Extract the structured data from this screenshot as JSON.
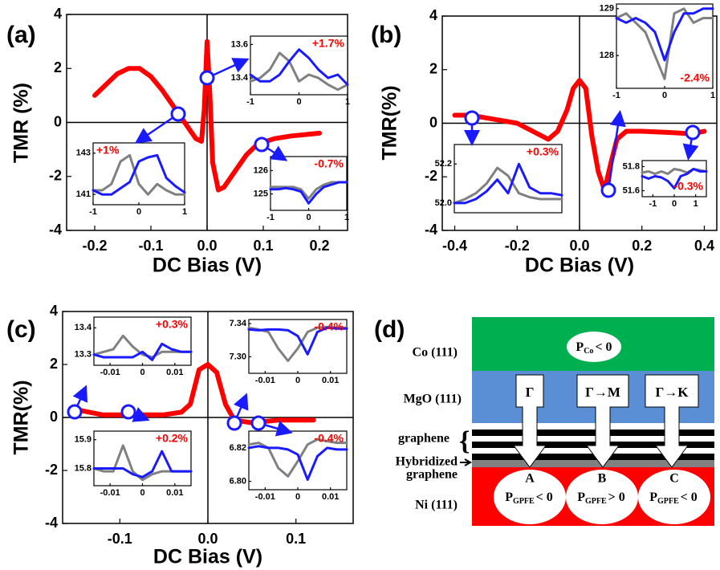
{
  "chart_data": [
    {
      "type": "line",
      "panel_label": "(a)",
      "x_label": "DC Bias (V)",
      "y_label": "TMR (%)",
      "xlim": [
        -0.25,
        0.25
      ],
      "xticks": [
        -0.2,
        -0.1,
        {
          "value": 0,
          "label": "0.0"
        },
        0.1,
        0.2
      ],
      "ylim": [
        -4,
        4
      ],
      "yticks": [
        -4,
        -2,
        0,
        2,
        4
      ],
      "x": [
        -0.2,
        -0.18,
        -0.16,
        -0.14,
        -0.12,
        -0.1,
        -0.08,
        -0.06,
        -0.04,
        -0.02,
        -0.01,
        -0.005,
        0,
        0.005,
        0.01,
        0.02,
        0.03,
        0.05,
        0.07,
        0.09,
        0.12,
        0.15,
        0.2
      ],
      "series": [
        {
          "color": "#ff0000",
          "values": [
            1.0,
            1.4,
            1.8,
            2.0,
            2.0,
            1.7,
            1.2,
            0.6,
            0.0,
            -0.6,
            -0.7,
            0.5,
            3.0,
            1.0,
            -1.5,
            -2.5,
            -2.4,
            -1.8,
            -1.2,
            -0.8,
            -0.6,
            -0.5,
            -0.4
          ]
        }
      ],
      "insets": [
        {
          "type": "line",
          "annotation": "+1.7%",
          "annotation_color": "#ff0000",
          "xlim": [
            -1,
            1
          ],
          "xticks": [
            -1,
            0,
            1
          ],
          "ylim": [
            13.3,
            13.65
          ],
          "yticks": [
            13.6,
            13.4
          ],
          "x": [
            -1,
            -0.8,
            -0.6,
            -0.4,
            -0.2,
            0,
            0.2,
            0.4,
            0.6,
            0.8,
            1
          ],
          "series": [
            {
              "color": "#808080",
              "values": [
                13.38,
                13.4,
                13.45,
                13.55,
                13.5,
                13.38,
                13.42,
                13.4,
                13.36,
                13.33,
                13.36
              ]
            },
            {
              "color": "#1a1aff",
              "values": [
                13.42,
                13.38,
                13.38,
                13.42,
                13.5,
                13.57,
                13.52,
                13.45,
                13.4,
                13.42,
                13.36
              ]
            }
          ]
        },
        {
          "type": "line",
          "annotation": "+1%",
          "annotation_color": "#ff0000",
          "xlim": [
            -1,
            1
          ],
          "xticks": [
            -1,
            0,
            1
          ],
          "ylim": [
            140.5,
            143.5
          ],
          "yticks": [
            143,
            141
          ],
          "x": [
            -1,
            -0.8,
            -0.6,
            -0.4,
            -0.2,
            0,
            0.2,
            0.4,
            0.6,
            0.8,
            1
          ],
          "series": [
            {
              "color": "#808080",
              "values": [
                141.2,
                141.2,
                141.5,
                142.6,
                142.9,
                141.5,
                141.0,
                141.5,
                141.2,
                141.0,
                141.0
              ]
            },
            {
              "color": "#1a1aff",
              "values": [
                141.2,
                141.0,
                141.0,
                141.3,
                141.6,
                142.6,
                142.8,
                142.9,
                141.8,
                141.4,
                141.1
              ]
            }
          ]
        },
        {
          "type": "line",
          "annotation": "-0.7%",
          "annotation_color": "#ff0000",
          "xlim": [
            -1,
            1
          ],
          "xticks": [
            -1,
            0,
            1
          ],
          "ylim": [
            124.3,
            126.6
          ],
          "yticks": [
            126,
            125
          ],
          "x": [
            -1,
            -0.8,
            -0.6,
            -0.4,
            -0.2,
            0,
            0.2,
            0.4,
            0.6,
            0.8,
            1
          ],
          "series": [
            {
              "color": "#808080",
              "values": [
                125.3,
                125.3,
                125.3,
                125.3,
                125.2,
                124.8,
                125.2,
                125.4,
                125.5,
                125.5,
                125.5
              ]
            },
            {
              "color": "#1a1aff",
              "values": [
                125.2,
                125.2,
                125.25,
                125.2,
                125.1,
                124.6,
                125.0,
                125.3,
                125.4,
                125.5,
                125.5
              ]
            }
          ]
        }
      ]
    },
    {
      "type": "line",
      "panel_label": "(b)",
      "x_label": "DC Bias (V)",
      "y_label": "TMR(%)",
      "xlim": [
        -0.44,
        0.44
      ],
      "xticks": [
        -0.4,
        -0.2,
        {
          "value": 0,
          "label": "0.0"
        },
        0.2,
        0.4
      ],
      "ylim": [
        -4,
        4
      ],
      "yticks": [
        -4,
        -2,
        0,
        2,
        4
      ],
      "x": [
        -0.4,
        -0.35,
        -0.3,
        -0.2,
        -0.15,
        -0.1,
        -0.07,
        -0.04,
        -0.02,
        0,
        0.02,
        0.04,
        0.06,
        0.08,
        0.1,
        0.12,
        0.15,
        0.2,
        0.3,
        0.36,
        0.4
      ],
      "series": [
        {
          "color": "#ff0000",
          "values": [
            0.3,
            0.3,
            0.2,
            0.0,
            -0.3,
            -0.6,
            -0.3,
            0.5,
            1.3,
            1.6,
            1.3,
            -0.5,
            -1.8,
            -2.5,
            -1.5,
            -0.6,
            -0.3,
            -0.3,
            -0.35,
            -0.4,
            -0.3
          ]
        }
      ],
      "insets": [
        {
          "type": "line",
          "annotation": "-2.4%",
          "annotation_color": "#ff0000",
          "xlim": [
            -1,
            1
          ],
          "xticks": [
            -1,
            0,
            1
          ],
          "ylim": [
            127.3,
            129.1
          ],
          "yticks": [
            129,
            128
          ],
          "x": [
            -1,
            -0.8,
            -0.6,
            -0.4,
            -0.2,
            0,
            0.2,
            0.4,
            0.6,
            0.8,
            1
          ],
          "series": [
            {
              "color": "#808080",
              "values": [
                128.8,
                128.9,
                128.7,
                128.5,
                128.0,
                127.5,
                128.9,
                129.0,
                128.7,
                128.8,
                128.8
              ]
            },
            {
              "color": "#1a1aff",
              "values": [
                128.8,
                128.7,
                128.8,
                128.7,
                128.5,
                127.9,
                128.5,
                128.9,
                128.9,
                129.0,
                129.0
              ]
            }
          ]
        },
        {
          "type": "line",
          "annotation": "+0.3%",
          "annotation_color": "#ff0000",
          "xlim": [
            -1,
            1
          ],
          "ylim": [
            51.95,
            52.3
          ],
          "yticks": [
            52.2,
            {
              "value": 52,
              "label": "52.0"
            }
          ],
          "x": [
            -1,
            -0.8,
            -0.6,
            -0.4,
            -0.2,
            0,
            0.2,
            0.4,
            0.6,
            0.8,
            1
          ],
          "series": [
            {
              "color": "#808080",
              "values": [
                52.0,
                52.02,
                52.05,
                52.1,
                52.18,
                52.14,
                52.05,
                52.03,
                52.02,
                52.02,
                52.02
              ]
            },
            {
              "color": "#1a1aff",
              "values": [
                52.0,
                52.0,
                52.02,
                52.06,
                52.12,
                52.05,
                52.2,
                52.08,
                52.05,
                52.05,
                52.04
              ]
            }
          ]
        },
        {
          "type": "line",
          "annotation": "-0.3%",
          "annotation_color": "#ff0000",
          "xlim": [
            -1.5,
            1.5
          ],
          "xticks": [
            -1,
            0,
            1
          ],
          "ylim": [
            51.55,
            51.85
          ],
          "yticks": [
            51.8,
            51.6
          ],
          "x": [
            -1.5,
            -1.2,
            -0.9,
            -0.6,
            -0.3,
            0,
            0.3,
            0.6,
            0.9,
            1.2,
            1.5
          ],
          "series": [
            {
              "color": "#808080",
              "values": [
                51.75,
                51.76,
                51.74,
                51.76,
                51.74,
                51.78,
                51.77,
                51.75,
                51.78,
                51.77,
                51.76
              ]
            },
            {
              "color": "#1a1aff",
              "values": [
                51.72,
                51.7,
                51.72,
                51.71,
                51.68,
                51.62,
                51.72,
                51.74,
                51.78,
                51.76,
                51.76
              ]
            }
          ]
        }
      ]
    },
    {
      "type": "line",
      "panel_label": "(c)",
      "x_label": "DC Bias (V)",
      "y_label": "TMR(%)",
      "xlim": [
        -0.165,
        0.165
      ],
      "xticks": [
        -0.1,
        {
          "value": 0,
          "label": "0.0"
        },
        0.1
      ],
      "ylim": [
        -4,
        4
      ],
      "yticks": [
        -4,
        -2,
        0,
        2,
        4
      ],
      "x": [
        -0.15,
        -0.12,
        -0.08,
        -0.05,
        -0.03,
        -0.02,
        -0.01,
        0,
        0.01,
        0.02,
        0.03,
        0.05,
        0.08,
        0.12
      ],
      "series": [
        {
          "color": "#ff0000",
          "values": [
            0.3,
            0.1,
            0.1,
            0.1,
            0.2,
            0.5,
            1.8,
            2.0,
            1.7,
            0.5,
            -0.1,
            -0.2,
            -0.1,
            -0.1
          ]
        }
      ],
      "insets": [
        {
          "type": "line",
          "annotation": "+0.3%",
          "annotation_color": "#ff0000",
          "xlim": [
            -0.015,
            0.015
          ],
          "xticks": [
            -0.01,
            0,
            0.01
          ],
          "ylim": [
            13.26,
            13.44
          ],
          "yticks": [
            13.4,
            13.3
          ],
          "x": [
            -0.015,
            -0.012,
            -0.009,
            -0.006,
            -0.003,
            0,
            0.003,
            0.006,
            0.009,
            0.012,
            0.015
          ],
          "series": [
            {
              "color": "#808080",
              "values": [
                13.3,
                13.31,
                13.32,
                13.37,
                13.33,
                13.3,
                13.29,
                13.31,
                13.31,
                13.31,
                13.31
              ]
            },
            {
              "color": "#1a1aff",
              "values": [
                13.3,
                13.29,
                13.29,
                13.29,
                13.29,
                13.31,
                13.28,
                13.34,
                13.32,
                13.31,
                13.31
              ]
            }
          ]
        },
        {
          "type": "line",
          "annotation": "+0.2%",
          "annotation_color": "#ff0000",
          "xlim": [
            -0.015,
            0.015
          ],
          "xticks": [
            -0.01,
            0,
            0.01
          ],
          "ylim": [
            15.74,
            15.93
          ],
          "yticks": [
            15.9,
            15.8
          ],
          "x": [
            -0.015,
            -0.012,
            -0.009,
            -0.006,
            -0.003,
            0,
            0.003,
            0.006,
            0.009,
            0.012,
            0.015
          ],
          "series": [
            {
              "color": "#808080",
              "values": [
                15.8,
                15.79,
                15.79,
                15.88,
                15.79,
                15.76,
                15.78,
                15.79,
                15.79,
                15.79,
                15.79
              ]
            },
            {
              "color": "#1a1aff",
              "values": [
                15.8,
                15.8,
                15.8,
                15.8,
                15.78,
                15.77,
                15.79,
                15.86,
                15.79,
                15.79,
                15.79
              ]
            }
          ]
        },
        {
          "type": "line",
          "annotation": "-0.4%",
          "annotation_color": "#ff0000",
          "xlim": [
            -0.015,
            0.015
          ],
          "xticks": [
            -0.01,
            0,
            0.01
          ],
          "ylim": [
            7.28,
            7.345
          ],
          "yticks": [
            7.34,
            {
              "value": 7.3,
              "label": "7.30"
            }
          ],
          "x": [
            -0.015,
            -0.012,
            -0.009,
            -0.006,
            -0.003,
            0,
            0.003,
            0.006,
            0.009,
            0.012,
            0.015
          ],
          "series": [
            {
              "color": "#808080",
              "values": [
                7.335,
                7.333,
                7.33,
                7.31,
                7.295,
                7.31,
                7.33,
                7.335,
                7.336,
                7.335,
                7.335
              ]
            },
            {
              "color": "#1a1aff",
              "values": [
                7.333,
                7.332,
                7.333,
                7.333,
                7.332,
                7.325,
                7.303,
                7.33,
                7.335,
                7.334,
                7.334
              ]
            }
          ]
        },
        {
          "type": "line",
          "annotation": "-0.4%",
          "annotation_color": "#ff0000",
          "xlim": [
            -0.015,
            0.015
          ],
          "xticks": [
            -0.01,
            0,
            0.01
          ],
          "ylim": [
            6.795,
            6.83
          ],
          "yticks": [
            6.82,
            {
              "value": 6.8,
              "label": "6.80"
            }
          ],
          "x": [
            -0.015,
            -0.012,
            -0.009,
            -0.006,
            -0.003,
            0,
            0.003,
            0.006,
            0.009,
            0.012,
            0.015
          ],
          "series": [
            {
              "color": "#808080",
              "values": [
                6.822,
                6.823,
                6.82,
                6.808,
                6.803,
                6.812,
                6.822,
                6.825,
                6.824,
                6.823,
                6.823
              ]
            },
            {
              "color": "#1a1aff",
              "values": [
                6.82,
                6.821,
                6.82,
                6.82,
                6.819,
                6.816,
                6.801,
                6.815,
                6.82,
                6.819,
                6.819
              ]
            }
          ]
        }
      ]
    }
  ],
  "diagram": {
    "label": "(d)",
    "layer_labels": [
      "Co (111)",
      "MgO (111)",
      "graphene",
      "Ni (111)"
    ],
    "hybrid_label": [
      "Hybridized",
      "graphene"
    ],
    "top_polarization": {
      "symbol": "P",
      "subscript": "Co",
      "relation": "< 0"
    },
    "paths": [
      "Γ",
      "Γ→M",
      "Γ→K"
    ],
    "states": [
      {
        "name": "A",
        "symbol": "P",
        "subscript": "GPFE",
        "relation": "< 0"
      },
      {
        "name": "B",
        "symbol": "P",
        "subscript": "GPFE",
        "relation": "> 0"
      },
      {
        "name": "C",
        "symbol": "P",
        "subscript": "GPFE",
        "relation": "< 0"
      }
    ]
  }
}
